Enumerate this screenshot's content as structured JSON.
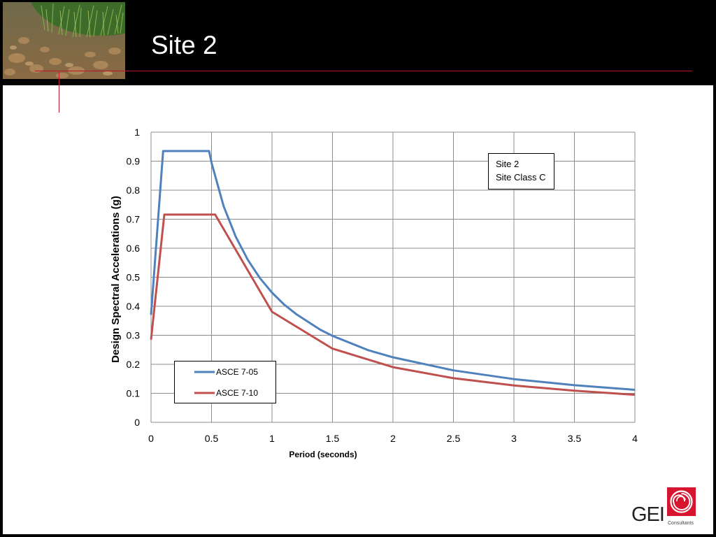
{
  "slide": {
    "title": "Site 2"
  },
  "annotation": {
    "line1": "Site 2",
    "line2": "Site Class C"
  },
  "logo": {
    "text": "GEI",
    "subtext": "Consultants",
    "color": "#d7152f"
  },
  "colors": {
    "accent": "#c0112b",
    "series_a": "#4f81bd",
    "series_b": "#c0504d"
  },
  "chart_data": {
    "type": "line",
    "title": "",
    "xlabel": "Period (seconds)",
    "ylabel": "Design Spectral Accelerations (g)",
    "xlim": [
      0,
      4
    ],
    "ylim": [
      0,
      1
    ],
    "xticks": [
      "0",
      "0.5",
      "1",
      "1.5",
      "2",
      "2.5",
      "3",
      "3.5",
      "4"
    ],
    "yticks": [
      "0",
      "0.1",
      "0.2",
      "0.3",
      "0.4",
      "0.5",
      "0.6",
      "0.7",
      "0.8",
      "0.9",
      "1"
    ],
    "grid": true,
    "legend": "bottom-left",
    "series": [
      {
        "name": "ASCE 7-05",
        "color": "#4f81bd",
        "x": [
          0,
          0.1,
          0.48,
          0.5,
          0.6,
          0.7,
          0.8,
          0.9,
          1.0,
          1.1,
          1.2,
          1.4,
          1.5,
          1.8,
          2.0,
          2.5,
          3.0,
          3.5,
          4.0
        ],
        "y": [
          0.37,
          0.935,
          0.935,
          0.895,
          0.745,
          0.64,
          0.56,
          0.497,
          0.447,
          0.406,
          0.373,
          0.319,
          0.298,
          0.248,
          0.224,
          0.179,
          0.149,
          0.128,
          0.112
        ]
      },
      {
        "name": "ASCE 7-10",
        "color": "#c0504d",
        "x": [
          0,
          0.11,
          0.53,
          1.0,
          1.5,
          2.0,
          2.5,
          3.0,
          3.5,
          4.0
        ],
        "y": [
          0.285,
          0.716,
          0.716,
          0.381,
          0.254,
          0.19,
          0.152,
          0.127,
          0.109,
          0.095
        ]
      }
    ]
  }
}
